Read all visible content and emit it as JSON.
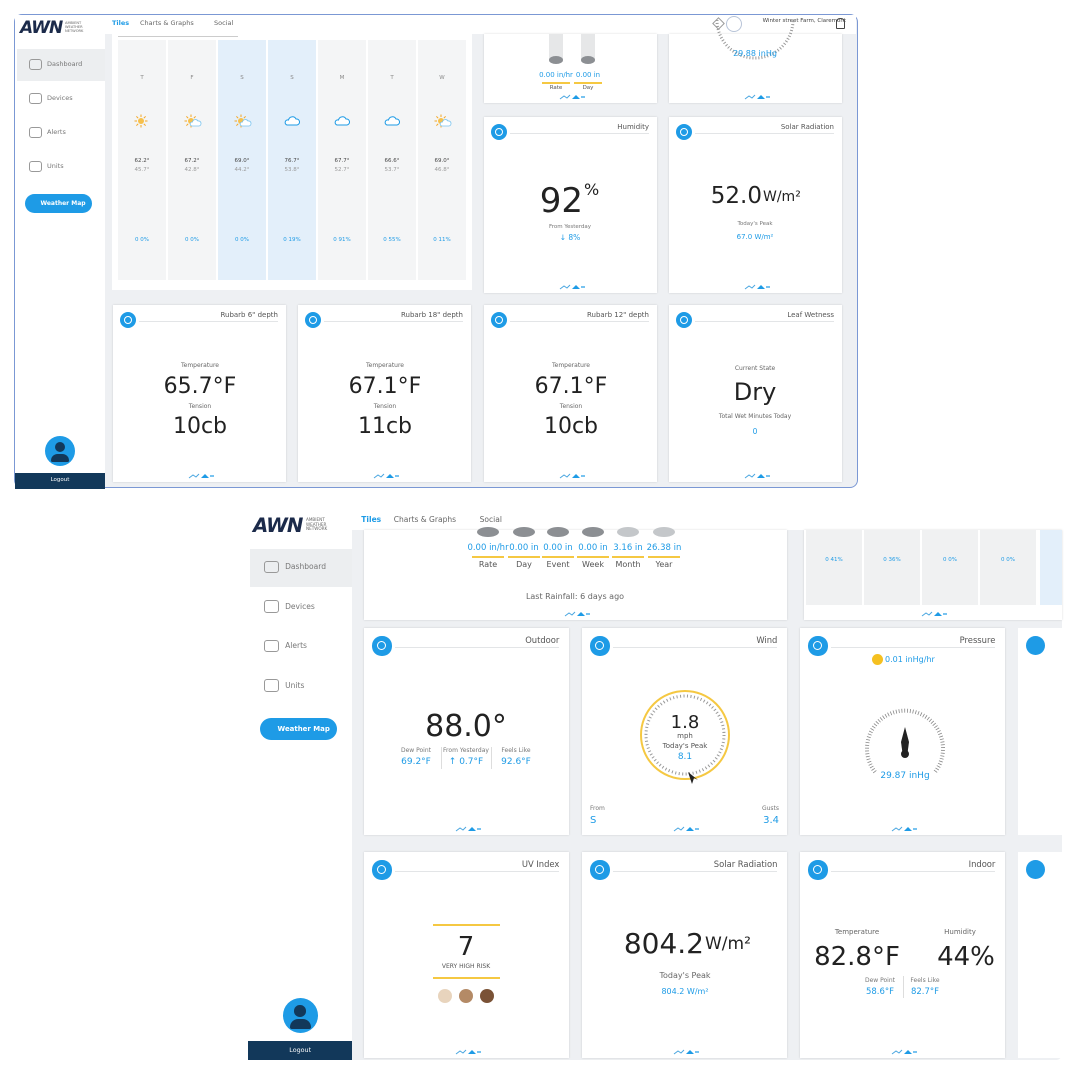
{
  "top": {
    "logo": {
      "mark": "AWN",
      "sub": "AMBIENT WEATHER NETWORK"
    },
    "tabs": [
      "Tiles",
      "Charts & Graphs",
      "Social"
    ],
    "station": "Winter street Farm, Claremont",
    "sidebar": [
      "Dashboard",
      "Devices",
      "Alerts",
      "Units"
    ],
    "map_button": "Weather Map",
    "logout": "Logout",
    "forecast": [
      {
        "day": "T",
        "icon": "sun",
        "high": "62.2°",
        "low": "45.7°",
        "precip": "0 0%"
      },
      {
        "day": "F",
        "icon": "partly",
        "high": "67.2°",
        "low": "42.8°",
        "precip": "0 0%"
      },
      {
        "day": "S",
        "icon": "partly",
        "high": "69.0°",
        "low": "44.2°",
        "precip": "0 0%"
      },
      {
        "day": "S",
        "icon": "cloud",
        "high": "76.7°",
        "low": "53.8°",
        "precip": "0 19%"
      },
      {
        "day": "M",
        "icon": "cloud",
        "high": "67.7°",
        "low": "52.7°",
        "precip": "0 91%"
      },
      {
        "day": "T",
        "icon": "cloud",
        "high": "66.6°",
        "low": "53.7°",
        "precip": "0 55%"
      },
      {
        "day": "W",
        "icon": "partly",
        "high": "69.0°",
        "low": "46.8°",
        "precip": "0 11%"
      }
    ],
    "rain": {
      "values": [
        "0.00 in/hr",
        "0.00 in"
      ],
      "labels": [
        "Rate",
        "Day"
      ]
    },
    "pressure": "29.88 inHg",
    "humidity": {
      "title": "Humidity",
      "value": "92",
      "unit": "%",
      "caption": "From Yesterday",
      "change": "↓ 8%"
    },
    "solar": {
      "title": "Solar Radiation",
      "value": "52.0",
      "unit": "W/m²",
      "caption": "Today's Peak",
      "peak": "67.0 W/m²"
    },
    "soil": [
      {
        "title": "Rubarb 6\" depth",
        "temp_label": "Temperature",
        "temp": "65.7°F",
        "tension_label": "Tension",
        "tension": "10cb"
      },
      {
        "title": "Rubarb 18\" depth",
        "temp_label": "Temperature",
        "temp": "67.1°F",
        "tension_label": "Tension",
        "tension": "11cb"
      },
      {
        "title": "Rubarb 12\" depth",
        "temp_label": "Temperature",
        "temp": "67.1°F",
        "tension_label": "Tension",
        "tension": "10cb"
      }
    ],
    "leaf": {
      "title": "Leaf Wetness",
      "state_label": "Current State",
      "state": "Dry",
      "minutes_label": "Total Wet Minutes Today",
      "minutes": "0"
    }
  },
  "bottom": {
    "logo": {
      "mark": "AWN",
      "sub": "AMBIENT WEATHER NETWORK"
    },
    "tabs": [
      "Tiles",
      "Charts & Graphs",
      "Social"
    ],
    "sidebar": [
      "Dashboard",
      "Devices",
      "Alerts",
      "Units"
    ],
    "map_button": "Weather Map",
    "logout": "Logout",
    "rain": {
      "values": [
        "0.00 in/hr",
        "0.00 in",
        "0.00 in",
        "0.00 in",
        "3.16 in",
        "26.38 in"
      ],
      "labels": [
        "Rate",
        "Day",
        "Event",
        "Week",
        "Month",
        "Year"
      ],
      "last": "Last Rainfall: 6 days ago"
    },
    "forecast_precip": [
      "0 41%",
      "0 36%",
      "0 0%",
      "0 0%"
    ],
    "outdoor": {
      "title": "Outdoor",
      "value": "88.0°",
      "details": [
        {
          "label": "Dew Point",
          "value": "69.2°F"
        },
        {
          "label": "From Yesterday",
          "value": "↑ 0.7°F"
        },
        {
          "label": "Feels Like",
          "value": "92.6°F"
        }
      ]
    },
    "wind": {
      "title": "Wind",
      "value": "1.8",
      "unit": "mph",
      "peak_label": "Today's Peak",
      "peak": "8.1",
      "from_label": "From",
      "from": "S",
      "gusts_label": "Gusts",
      "gusts": "3.4"
    },
    "pressure": {
      "title": "Pressure",
      "trend": "0.01 inHg/hr",
      "value": "29.87 inHg"
    },
    "uv": {
      "title": "UV Index",
      "value": "7",
      "risk": "VERY HIGH RISK"
    },
    "solar": {
      "title": "Solar Radiation",
      "value": "804.2",
      "unit": "W/m²",
      "caption": "Today's Peak",
      "peak": "804.2 W/m²"
    },
    "indoor": {
      "title": "Indoor",
      "temp_label": "Temperature",
      "temp": "82.8°F",
      "hum_label": "Humidity",
      "hum": "44%",
      "details": [
        {
          "label": "Dew Point",
          "value": "58.6°F"
        },
        {
          "label": "Feels Like",
          "value": "82.7°F"
        }
      ]
    }
  }
}
